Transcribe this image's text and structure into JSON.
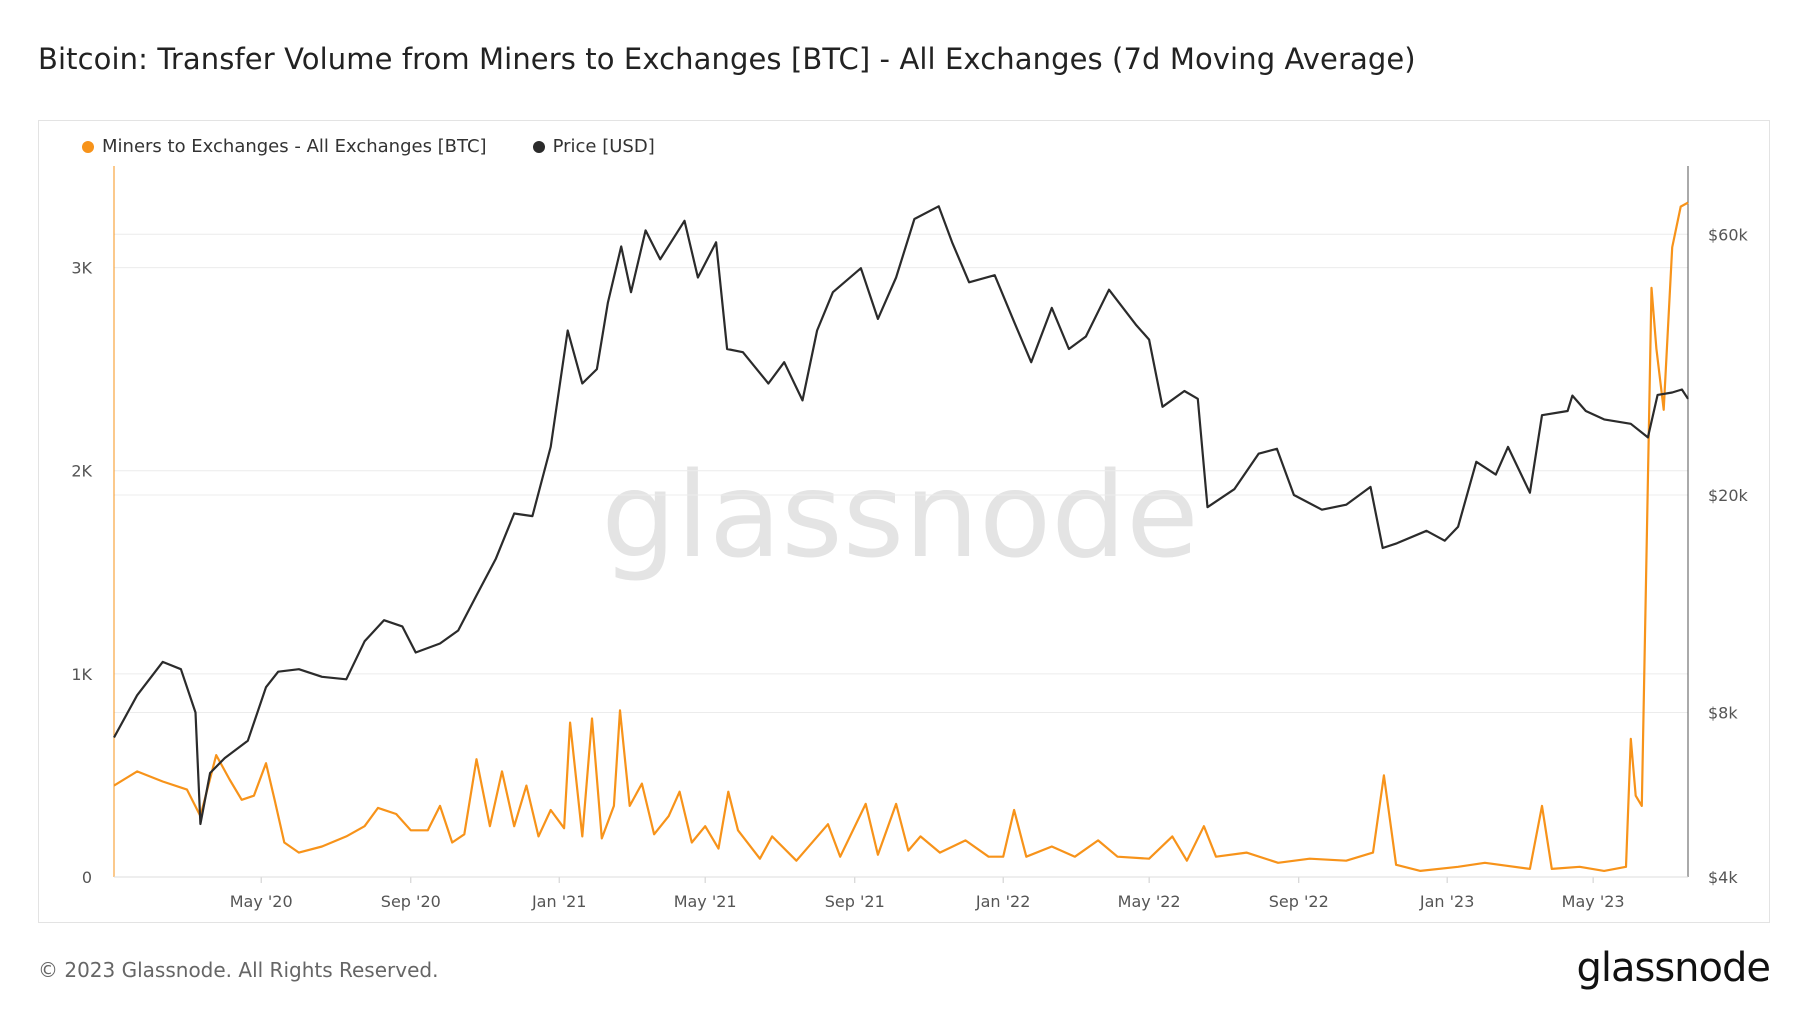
{
  "page": {
    "title": "Bitcoin: Transfer Volume from Miners to Exchanges [BTC] - All Exchanges (7d Moving Average)",
    "watermark": "glassnode",
    "copyright": "© 2023 Glassnode. All Rights Reserved.",
    "logo": "glassnode"
  },
  "chart_data": {
    "type": "line",
    "title": "Bitcoin: Transfer Volume from Miners to Exchanges [BTC] - All Exchanges (7d Moving Average)",
    "x_tick_labels": [
      "May '20",
      "Sep '20",
      "Jan '21",
      "May '21",
      "Sep '21",
      "Jan '22",
      "May '22",
      "Sep '22",
      "Jan '23",
      "May '23"
    ],
    "x_range": [
      "2020-01-01",
      "2023-07-18"
    ],
    "y_left": {
      "tick_labels": [
        "0",
        "1K",
        "2K",
        "3K"
      ],
      "ticks": [
        0,
        1000,
        2000,
        3000
      ],
      "range": [
        0,
        3500
      ],
      "scale": "linear"
    },
    "y_right": {
      "tick_labels": [
        "$4k",
        "$8k",
        "$20k",
        "$60k"
      ],
      "ticks": [
        4000,
        8000,
        20000,
        60000
      ],
      "range": [
        4000,
        80000
      ],
      "scale": "log"
    },
    "grid": true,
    "legend_position": "top-left",
    "series": [
      {
        "name": "Miners to Exchanges - All Exchanges [BTC]",
        "axis": "left",
        "color": "#f7931a",
        "points": [
          [
            "2020-01-01",
            450
          ],
          [
            "2020-01-20",
            520
          ],
          [
            "2020-02-10",
            470
          ],
          [
            "2020-03-01",
            430
          ],
          [
            "2020-03-12",
            300
          ],
          [
            "2020-03-25",
            600
          ],
          [
            "2020-04-05",
            480
          ],
          [
            "2020-04-15",
            380
          ],
          [
            "2020-04-25",
            400
          ],
          [
            "2020-05-05",
            560
          ],
          [
            "2020-05-12",
            380
          ],
          [
            "2020-05-20",
            170
          ],
          [
            "2020-06-01",
            120
          ],
          [
            "2020-06-20",
            150
          ],
          [
            "2020-07-10",
            200
          ],
          [
            "2020-07-25",
            250
          ],
          [
            "2020-08-05",
            340
          ],
          [
            "2020-08-20",
            310
          ],
          [
            "2020-09-01",
            230
          ],
          [
            "2020-09-15",
            230
          ],
          [
            "2020-09-25",
            350
          ],
          [
            "2020-10-05",
            170
          ],
          [
            "2020-10-15",
            210
          ],
          [
            "2020-10-25",
            580
          ],
          [
            "2020-11-05",
            250
          ],
          [
            "2020-11-15",
            520
          ],
          [
            "2020-11-25",
            250
          ],
          [
            "2020-12-05",
            450
          ],
          [
            "2020-12-15",
            200
          ],
          [
            "2020-12-25",
            330
          ],
          [
            "2021-01-05",
            240
          ],
          [
            "2021-01-10",
            760
          ],
          [
            "2021-01-20",
            200
          ],
          [
            "2021-01-28",
            780
          ],
          [
            "2021-02-05",
            190
          ],
          [
            "2021-02-15",
            350
          ],
          [
            "2021-02-20",
            820
          ],
          [
            "2021-02-28",
            350
          ],
          [
            "2021-03-10",
            460
          ],
          [
            "2021-03-20",
            210
          ],
          [
            "2021-04-01",
            300
          ],
          [
            "2021-04-10",
            420
          ],
          [
            "2021-04-20",
            170
          ],
          [
            "2021-05-01",
            250
          ],
          [
            "2021-05-12",
            140
          ],
          [
            "2021-05-20",
            420
          ],
          [
            "2021-05-28",
            230
          ],
          [
            "2021-06-15",
            90
          ],
          [
            "2021-06-25",
            200
          ],
          [
            "2021-07-15",
            80
          ],
          [
            "2021-08-10",
            260
          ],
          [
            "2021-08-20",
            100
          ],
          [
            "2021-09-10",
            360
          ],
          [
            "2021-09-20",
            110
          ],
          [
            "2021-10-05",
            360
          ],
          [
            "2021-10-15",
            130
          ],
          [
            "2021-10-25",
            200
          ],
          [
            "2021-11-10",
            120
          ],
          [
            "2021-12-01",
            180
          ],
          [
            "2021-12-20",
            100
          ],
          [
            "2022-01-01",
            100
          ],
          [
            "2022-01-10",
            330
          ],
          [
            "2022-01-20",
            100
          ],
          [
            "2022-02-10",
            150
          ],
          [
            "2022-03-01",
            100
          ],
          [
            "2022-03-20",
            180
          ],
          [
            "2022-04-05",
            100
          ],
          [
            "2022-05-01",
            90
          ],
          [
            "2022-05-20",
            200
          ],
          [
            "2022-06-01",
            80
          ],
          [
            "2022-06-15",
            250
          ],
          [
            "2022-06-25",
            100
          ],
          [
            "2022-07-20",
            120
          ],
          [
            "2022-08-15",
            70
          ],
          [
            "2022-09-10",
            90
          ],
          [
            "2022-10-10",
            80
          ],
          [
            "2022-11-01",
            120
          ],
          [
            "2022-11-10",
            500
          ],
          [
            "2022-11-20",
            60
          ],
          [
            "2022-12-10",
            30
          ],
          [
            "2023-01-10",
            50
          ],
          [
            "2023-02-01",
            70
          ],
          [
            "2023-03-10",
            40
          ],
          [
            "2023-03-20",
            350
          ],
          [
            "2023-03-28",
            40
          ],
          [
            "2023-04-20",
            50
          ],
          [
            "2023-05-10",
            30
          ],
          [
            "2023-05-28",
            50
          ],
          [
            "2023-06-01",
            680
          ],
          [
            "2023-06-05",
            400
          ],
          [
            "2023-06-10",
            350
          ],
          [
            "2023-06-18",
            2900
          ],
          [
            "2023-06-22",
            2600
          ],
          [
            "2023-06-28",
            2300
          ],
          [
            "2023-07-05",
            3100
          ],
          [
            "2023-07-12",
            3300
          ],
          [
            "2023-07-18",
            3320
          ]
        ]
      },
      {
        "name": "Price [USD]",
        "axis": "right",
        "color": "#2b2b2b",
        "points": [
          [
            "2020-01-01",
            7200
          ],
          [
            "2020-01-20",
            8600
          ],
          [
            "2020-02-10",
            9900
          ],
          [
            "2020-02-25",
            9600
          ],
          [
            "2020-03-08",
            8000
          ],
          [
            "2020-03-12",
            5000
          ],
          [
            "2020-03-20",
            6200
          ],
          [
            "2020-04-01",
            6600
          ],
          [
            "2020-04-20",
            7100
          ],
          [
            "2020-05-05",
            8900
          ],
          [
            "2020-05-15",
            9500
          ],
          [
            "2020-06-01",
            9600
          ],
          [
            "2020-06-20",
            9300
          ],
          [
            "2020-07-10",
            9200
          ],
          [
            "2020-07-25",
            10800
          ],
          [
            "2020-08-10",
            11800
          ],
          [
            "2020-08-25",
            11500
          ],
          [
            "2020-09-05",
            10300
          ],
          [
            "2020-09-25",
            10700
          ],
          [
            "2020-10-10",
            11300
          ],
          [
            "2020-10-25",
            13100
          ],
          [
            "2020-11-10",
            15300
          ],
          [
            "2020-11-25",
            18500
          ],
          [
            "2020-12-10",
            18300
          ],
          [
            "2020-12-25",
            24500
          ],
          [
            "2021-01-08",
            40000
          ],
          [
            "2021-01-20",
            32000
          ],
          [
            "2021-02-01",
            34000
          ],
          [
            "2021-02-10",
            45000
          ],
          [
            "2021-02-21",
            57000
          ],
          [
            "2021-03-01",
            47000
          ],
          [
            "2021-03-13",
            61000
          ],
          [
            "2021-03-25",
            54000
          ],
          [
            "2021-04-14",
            63500
          ],
          [
            "2021-04-25",
            50000
          ],
          [
            "2021-05-10",
            58000
          ],
          [
            "2021-05-19",
            37000
          ],
          [
            "2021-06-01",
            36500
          ],
          [
            "2021-06-22",
            32000
          ],
          [
            "2021-07-05",
            35000
          ],
          [
            "2021-07-20",
            29800
          ],
          [
            "2021-08-01",
            40000
          ],
          [
            "2021-08-14",
            47000
          ],
          [
            "2021-09-06",
            52000
          ],
          [
            "2021-09-20",
            42000
          ],
          [
            "2021-10-05",
            50000
          ],
          [
            "2021-10-20",
            64000
          ],
          [
            "2021-11-09",
            67500
          ],
          [
            "2021-11-20",
            58000
          ],
          [
            "2021-12-04",
            49000
          ],
          [
            "2021-12-25",
            50500
          ],
          [
            "2022-01-10",
            41500
          ],
          [
            "2022-01-24",
            35000
          ],
          [
            "2022-02-10",
            44000
          ],
          [
            "2022-02-24",
            37000
          ],
          [
            "2022-03-10",
            39000
          ],
          [
            "2022-03-29",
            47500
          ],
          [
            "2022-04-20",
            41000
          ],
          [
            "2022-05-01",
            38500
          ],
          [
            "2022-05-12",
            29000
          ],
          [
            "2022-05-30",
            31000
          ],
          [
            "2022-06-10",
            30000
          ],
          [
            "2022-06-18",
            19000
          ],
          [
            "2022-07-10",
            20500
          ],
          [
            "2022-07-30",
            23800
          ],
          [
            "2022-08-14",
            24300
          ],
          [
            "2022-08-28",
            20000
          ],
          [
            "2022-09-20",
            18800
          ],
          [
            "2022-10-10",
            19200
          ],
          [
            "2022-10-30",
            20700
          ],
          [
            "2022-11-09",
            16000
          ],
          [
            "2022-11-20",
            16300
          ],
          [
            "2022-12-15",
            17200
          ],
          [
            "2022-12-30",
            16500
          ],
          [
            "2023-01-10",
            17500
          ],
          [
            "2023-01-25",
            23000
          ],
          [
            "2023-02-10",
            21800
          ],
          [
            "2023-02-20",
            24500
          ],
          [
            "2023-03-10",
            20200
          ],
          [
            "2023-03-20",
            28000
          ],
          [
            "2023-04-10",
            28500
          ],
          [
            "2023-04-14",
            30400
          ],
          [
            "2023-04-25",
            28500
          ],
          [
            "2023-05-10",
            27500
          ],
          [
            "2023-06-01",
            27000
          ],
          [
            "2023-06-15",
            25500
          ],
          [
            "2023-06-23",
            30500
          ],
          [
            "2023-07-05",
            30800
          ],
          [
            "2023-07-13",
            31200
          ],
          [
            "2023-07-18",
            30000
          ]
        ]
      }
    ]
  }
}
